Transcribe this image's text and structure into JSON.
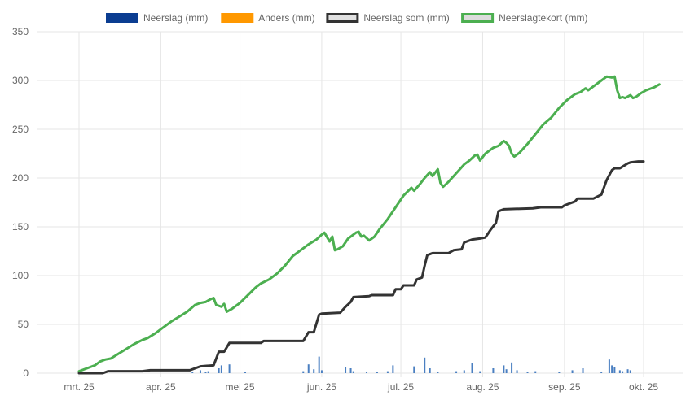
{
  "chart_data": {
    "type": "line",
    "title": "",
    "xlabel": "",
    "ylabel": "",
    "x_range": [
      "2025-03-01",
      "2025-10-01"
    ],
    "xticks": [
      "mrt. 25",
      "apr. 25",
      "mei 25",
      "jun. 25",
      "jul. 25",
      "aug. 25",
      "sep. 25",
      "okt. 25"
    ],
    "ylim": [
      0,
      350
    ],
    "yticks": [
      0,
      50,
      100,
      150,
      200,
      250,
      300,
      350
    ],
    "grid": true,
    "legend_position": "top",
    "legend": [
      {
        "label": "Neerslag (mm)",
        "fill": "#0b3d91",
        "stroke": "#0b3d91"
      },
      {
        "label": "Anders (mm)",
        "fill": "#ff9800",
        "stroke": "#ff9800"
      },
      {
        "label": "Neerslag som (mm)",
        "fill": "#e0e0e0",
        "stroke": "#333333"
      },
      {
        "label": "Neerslagtekort (mm)",
        "fill": "#dcdcdc",
        "stroke": "#4caf50"
      }
    ],
    "series": [
      {
        "name": "Neerslag (mm)",
        "type": "bar",
        "color": "#4a7fc1",
        "points": [
          [
            "2025-04-13",
            1
          ],
          [
            "2025-04-16",
            3
          ],
          [
            "2025-04-18",
            1
          ],
          [
            "2025-04-19",
            2
          ],
          [
            "2025-04-23",
            5
          ],
          [
            "2025-04-24",
            8
          ],
          [
            "2025-04-27",
            9
          ],
          [
            "2025-05-03",
            1
          ],
          [
            "2025-05-25",
            2
          ],
          [
            "2025-05-27",
            9
          ],
          [
            "2025-05-29",
            4
          ],
          [
            "2025-05-31",
            17
          ],
          [
            "2025-06-01",
            3
          ],
          [
            "2025-06-10",
            6
          ],
          [
            "2025-06-12",
            5
          ],
          [
            "2025-06-13",
            2
          ],
          [
            "2025-06-18",
            1
          ],
          [
            "2025-06-22",
            1
          ],
          [
            "2025-06-26",
            2
          ],
          [
            "2025-06-28",
            8
          ],
          [
            "2025-07-06",
            7
          ],
          [
            "2025-07-10",
            16
          ],
          [
            "2025-07-12",
            5
          ],
          [
            "2025-07-15",
            1
          ],
          [
            "2025-07-22",
            2
          ],
          [
            "2025-07-25",
            3
          ],
          [
            "2025-07-28",
            10
          ],
          [
            "2025-07-31",
            2
          ],
          [
            "2025-08-05",
            5
          ],
          [
            "2025-08-09",
            8
          ],
          [
            "2025-08-10",
            4
          ],
          [
            "2025-08-12",
            11
          ],
          [
            "2025-08-14",
            3
          ],
          [
            "2025-08-18",
            1
          ],
          [
            "2025-08-21",
            2
          ],
          [
            "2025-08-30",
            1
          ],
          [
            "2025-09-04",
            3
          ],
          [
            "2025-09-08",
            5
          ],
          [
            "2025-09-15",
            1
          ],
          [
            "2025-09-18",
            14
          ],
          [
            "2025-09-19",
            8
          ],
          [
            "2025-09-20",
            6
          ],
          [
            "2025-09-22",
            3
          ],
          [
            "2025-09-23",
            2
          ],
          [
            "2025-09-25",
            4
          ],
          [
            "2025-09-26",
            3
          ]
        ]
      },
      {
        "name": "Anders (mm)",
        "type": "bar",
        "color": "#ff9800",
        "points": []
      },
      {
        "name": "Neerslag som (mm)",
        "type": "line",
        "color": "#333333",
        "points": [
          [
            "2025-03-01",
            0
          ],
          [
            "2025-03-10",
            0
          ],
          [
            "2025-03-12",
            2
          ],
          [
            "2025-03-25",
            2
          ],
          [
            "2025-03-28",
            3
          ],
          [
            "2025-04-04",
            3
          ],
          [
            "2025-04-12",
            3
          ],
          [
            "2025-04-16",
            7
          ],
          [
            "2025-04-21",
            8
          ],
          [
            "2025-04-22",
            15
          ],
          [
            "2025-04-23",
            22
          ],
          [
            "2025-04-25",
            22
          ],
          [
            "2025-04-27",
            31
          ],
          [
            "2025-05-09",
            31
          ],
          [
            "2025-05-10",
            33
          ],
          [
            "2025-05-25",
            33
          ],
          [
            "2025-05-27",
            42
          ],
          [
            "2025-05-29",
            42
          ],
          [
            "2025-05-31",
            60
          ],
          [
            "2025-06-01",
            61
          ],
          [
            "2025-06-08",
            62
          ],
          [
            "2025-06-10",
            68
          ],
          [
            "2025-06-12",
            73
          ],
          [
            "2025-06-13",
            78
          ],
          [
            "2025-06-19",
            79
          ],
          [
            "2025-06-20",
            80
          ],
          [
            "2025-06-28",
            80
          ],
          [
            "2025-06-29",
            86
          ],
          [
            "2025-07-01",
            86
          ],
          [
            "2025-07-02",
            90
          ],
          [
            "2025-07-06",
            90
          ],
          [
            "2025-07-07",
            96
          ],
          [
            "2025-07-09",
            98
          ],
          [
            "2025-07-10",
            110
          ],
          [
            "2025-07-11",
            121
          ],
          [
            "2025-07-13",
            123
          ],
          [
            "2025-07-19",
            123
          ],
          [
            "2025-07-21",
            126
          ],
          [
            "2025-07-24",
            127
          ],
          [
            "2025-07-25",
            134
          ],
          [
            "2025-07-28",
            137
          ],
          [
            "2025-07-31",
            138
          ],
          [
            "2025-08-02",
            139
          ],
          [
            "2025-08-04",
            147
          ],
          [
            "2025-08-06",
            154
          ],
          [
            "2025-08-07",
            166
          ],
          [
            "2025-08-09",
            168
          ],
          [
            "2025-08-20",
            169
          ],
          [
            "2025-08-23",
            170
          ],
          [
            "2025-08-31",
            170
          ],
          [
            "2025-09-01",
            172
          ],
          [
            "2025-09-05",
            176
          ],
          [
            "2025-09-06",
            179
          ],
          [
            "2025-09-12",
            179
          ],
          [
            "2025-09-15",
            183
          ],
          [
            "2025-09-17",
            198
          ],
          [
            "2025-09-19",
            208
          ],
          [
            "2025-09-20",
            210
          ],
          [
            "2025-09-22",
            210
          ],
          [
            "2025-09-25",
            215
          ],
          [
            "2025-09-26",
            216
          ],
          [
            "2025-09-29",
            217
          ],
          [
            "2025-10-01",
            217
          ]
        ]
      },
      {
        "name": "Neerslagtekort (mm)",
        "type": "line",
        "color": "#4caf50",
        "points": [
          [
            "2025-03-01",
            2
          ],
          [
            "2025-03-04",
            5
          ],
          [
            "2025-03-07",
            8
          ],
          [
            "2025-03-09",
            12
          ],
          [
            "2025-03-11",
            14
          ],
          [
            "2025-03-13",
            15
          ],
          [
            "2025-03-16",
            20
          ],
          [
            "2025-03-19",
            25
          ],
          [
            "2025-03-22",
            30
          ],
          [
            "2025-03-25",
            34
          ],
          [
            "2025-03-27",
            36
          ],
          [
            "2025-03-30",
            41
          ],
          [
            "2025-04-02",
            47
          ],
          [
            "2025-04-05",
            53
          ],
          [
            "2025-04-08",
            58
          ],
          [
            "2025-04-11",
            63
          ],
          [
            "2025-04-14",
            70
          ],
          [
            "2025-04-16",
            72
          ],
          [
            "2025-04-18",
            73
          ],
          [
            "2025-04-20",
            76
          ],
          [
            "2025-04-21",
            77
          ],
          [
            "2025-04-22",
            70
          ],
          [
            "2025-04-24",
            68
          ],
          [
            "2025-04-25",
            71
          ],
          [
            "2025-04-26",
            63
          ],
          [
            "2025-04-28",
            66
          ],
          [
            "2025-05-01",
            72
          ],
          [
            "2025-05-04",
            80
          ],
          [
            "2025-05-07",
            88
          ],
          [
            "2025-05-09",
            92
          ],
          [
            "2025-05-12",
            96
          ],
          [
            "2025-05-15",
            102
          ],
          [
            "2025-05-18",
            110
          ],
          [
            "2025-05-21",
            120
          ],
          [
            "2025-05-24",
            126
          ],
          [
            "2025-05-27",
            132
          ],
          [
            "2025-05-30",
            137
          ],
          [
            "2025-06-01",
            142
          ],
          [
            "2025-06-02",
            144
          ],
          [
            "2025-06-04",
            135
          ],
          [
            "2025-06-05",
            140
          ],
          [
            "2025-06-06",
            126
          ],
          [
            "2025-06-07",
            127
          ],
          [
            "2025-06-09",
            130
          ],
          [
            "2025-06-11",
            138
          ],
          [
            "2025-06-14",
            144
          ],
          [
            "2025-06-15",
            145
          ],
          [
            "2025-06-16",
            140
          ],
          [
            "2025-06-17",
            141
          ],
          [
            "2025-06-19",
            136
          ],
          [
            "2025-06-21",
            140
          ],
          [
            "2025-06-23",
            148
          ],
          [
            "2025-06-26",
            158
          ],
          [
            "2025-06-29",
            170
          ],
          [
            "2025-07-02",
            182
          ],
          [
            "2025-07-05",
            190
          ],
          [
            "2025-07-06",
            187
          ],
          [
            "2025-07-08",
            193
          ],
          [
            "2025-07-10",
            200
          ],
          [
            "2025-07-12",
            206
          ],
          [
            "2025-07-13",
            202
          ],
          [
            "2025-07-15",
            209
          ],
          [
            "2025-07-16",
            195
          ],
          [
            "2025-07-17",
            191
          ],
          [
            "2025-07-19",
            196
          ],
          [
            "2025-07-22",
            205
          ],
          [
            "2025-07-25",
            214
          ],
          [
            "2025-07-27",
            218
          ],
          [
            "2025-07-29",
            223
          ],
          [
            "2025-07-30",
            224
          ],
          [
            "2025-07-31",
            218
          ],
          [
            "2025-08-02",
            225
          ],
          [
            "2025-08-05",
            231
          ],
          [
            "2025-08-07",
            233
          ],
          [
            "2025-08-09",
            238
          ],
          [
            "2025-08-10",
            236
          ],
          [
            "2025-08-11",
            233
          ],
          [
            "2025-08-12",
            225
          ],
          [
            "2025-08-13",
            222
          ],
          [
            "2025-08-15",
            226
          ],
          [
            "2025-08-18",
            235
          ],
          [
            "2025-08-21",
            245
          ],
          [
            "2025-08-24",
            255
          ],
          [
            "2025-08-27",
            262
          ],
          [
            "2025-08-30",
            272
          ],
          [
            "2025-09-02",
            280
          ],
          [
            "2025-09-05",
            286
          ],
          [
            "2025-09-07",
            288
          ],
          [
            "2025-09-09",
            292
          ],
          [
            "2025-09-10",
            290
          ],
          [
            "2025-09-12",
            294
          ],
          [
            "2025-09-15",
            300
          ],
          [
            "2025-09-17",
            304
          ],
          [
            "2025-09-19",
            303
          ],
          [
            "2025-09-20",
            304
          ],
          [
            "2025-09-21",
            290
          ],
          [
            "2025-09-22",
            282
          ],
          [
            "2025-09-23",
            283
          ],
          [
            "2025-09-24",
            282
          ],
          [
            "2025-09-26",
            285
          ],
          [
            "2025-09-27",
            282
          ],
          [
            "2025-09-28",
            283
          ],
          [
            "2025-09-30",
            287
          ],
          [
            "2025-10-02",
            290
          ],
          [
            "2025-10-05",
            293
          ],
          [
            "2025-10-07",
            296
          ]
        ]
      }
    ]
  }
}
